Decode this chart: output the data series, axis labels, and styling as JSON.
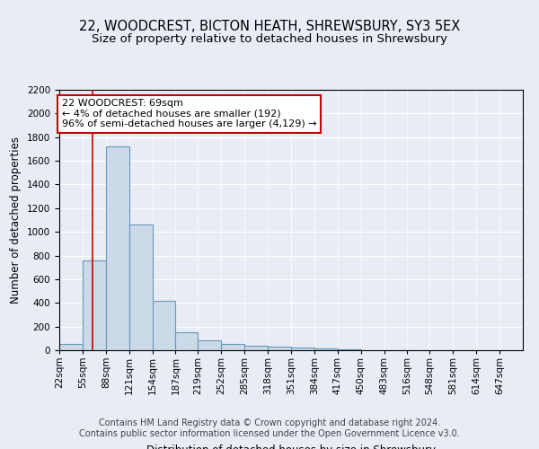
{
  "title1": "22, WOODCREST, BICTON HEATH, SHREWSBURY, SY3 5EX",
  "title2": "Size of property relative to detached houses in Shrewsbury",
  "xlabel": "Distribution of detached houses by size in Shrewsbury",
  "ylabel": "Number of detached properties",
  "footer1": "Contains HM Land Registry data © Crown copyright and database right 2024.",
  "footer2": "Contains public sector information licensed under the Open Government Licence v3.0.",
  "annotation_line1": "22 WOODCREST: 69sqm",
  "annotation_line2": "← 4% of detached houses are smaller (192)",
  "annotation_line3": "96% of semi-detached houses are larger (4,129) →",
  "bar_edges": [
    22,
    55,
    88,
    121,
    154,
    187,
    219,
    252,
    285,
    318,
    351,
    384,
    417,
    450,
    483,
    516,
    548,
    581,
    614,
    647,
    680
  ],
  "bar_heights": [
    55,
    760,
    1720,
    1060,
    420,
    150,
    80,
    50,
    38,
    30,
    20,
    15,
    10,
    0,
    0,
    0,
    0,
    0,
    0,
    0
  ],
  "bar_color": "#ccd9e8",
  "bar_edge_color": "#6699bb",
  "bar_linewidth": 0.8,
  "vline_x": 69,
  "vline_color": "#cc0000",
  "vline_linewidth": 1.2,
  "annotation_box_color": "#cc0000",
  "bg_color": "#e8ecf4",
  "plot_bg_color": "#e8ecf4",
  "ylim": [
    0,
    2200
  ],
  "yticks": [
    0,
    200,
    400,
    600,
    800,
    1000,
    1200,
    1400,
    1600,
    1800,
    2000,
    2200
  ],
  "title1_fontsize": 10.5,
  "title2_fontsize": 9.5,
  "xlabel_fontsize": 8.5,
  "ylabel_fontsize": 8.5,
  "tick_fontsize": 7.5,
  "annotation_fontsize": 8,
  "footer_fontsize": 7
}
